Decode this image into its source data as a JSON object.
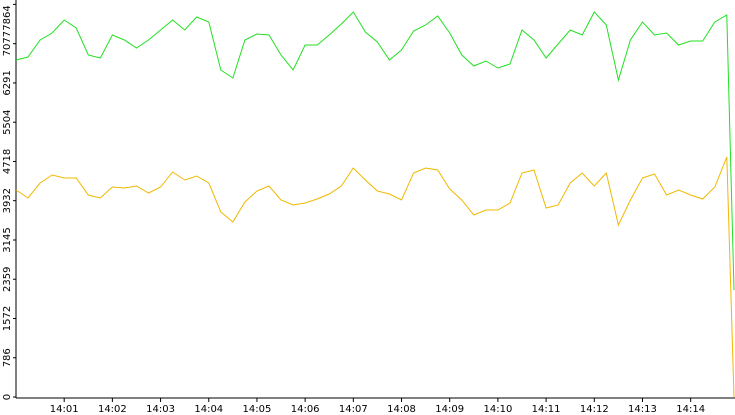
{
  "chart_data": {
    "type": "line",
    "x": [
      0,
      0.25,
      0.5,
      0.75,
      1,
      1.25,
      1.5,
      1.75,
      2,
      2.25,
      2.5,
      2.75,
      3,
      3.25,
      3.5,
      3.75,
      4,
      4.25,
      4.5,
      4.75,
      5,
      5.25,
      5.5,
      5.75,
      6,
      6.25,
      6.5,
      6.75,
      7,
      7.25,
      7.5,
      7.75,
      8,
      8.25,
      8.5,
      8.75,
      9,
      9.25,
      9.5,
      9.75,
      10,
      10.25,
      10.5,
      10.75,
      11,
      11.25,
      11.5,
      11.75,
      12,
      12.25,
      12.5,
      12.75,
      13,
      13.25,
      13.5,
      13.75,
      14,
      14.25,
      14.5,
      14.75,
      14.9
    ],
    "series": [
      {
        "color": "#22e022",
        "values": [
          6750,
          6810,
          7151,
          7291,
          7551,
          7391,
          6850,
          6790,
          7251,
          7151,
          6990,
          7151,
          7351,
          7551,
          7351,
          7611,
          7511,
          6550,
          6390,
          7151,
          7271,
          7251,
          6850,
          6550,
          7051,
          7051,
          7251,
          7471,
          7711,
          7311,
          7111,
          6750,
          6950,
          7331,
          7451,
          7631,
          7291,
          6850,
          6630,
          6730,
          6590,
          6670,
          7351,
          7151,
          6790,
          7071,
          7351,
          7251,
          7711,
          7451,
          6350,
          7151,
          7511,
          7251,
          7291,
          7051,
          7131,
          7131,
          7511,
          7651,
          2143
        ]
      },
      {
        "color": "#f0b800",
        "values": [
          4146,
          3986,
          4286,
          4447,
          4386,
          4386,
          4046,
          3986,
          4206,
          4186,
          4226,
          4086,
          4206,
          4507,
          4347,
          4427,
          4286,
          3706,
          3506,
          3906,
          4126,
          4226,
          3946,
          3846,
          3886,
          3966,
          4066,
          4226,
          4587,
          4347,
          4126,
          4066,
          3946,
          4487,
          4587,
          4547,
          4166,
          3946,
          3646,
          3746,
          3746,
          3886,
          4487,
          4547,
          3786,
          3846,
          4286,
          4487,
          4226,
          4487,
          3446,
          3946,
          4387,
          4467,
          4046,
          4146,
          4046,
          3966,
          4206,
          4807,
          0
        ]
      }
    ],
    "xlim": [
      0,
      14.92
    ],
    "xticks": [
      {
        "value": 1,
        "label": "14:01"
      },
      {
        "value": 2,
        "label": "14:02"
      },
      {
        "value": 3,
        "label": "14:03"
      },
      {
        "value": 4,
        "label": "14:04"
      },
      {
        "value": 5,
        "label": "14:05"
      },
      {
        "value": 6,
        "label": "14:06"
      },
      {
        "value": 7,
        "label": "14:07"
      },
      {
        "value": 8,
        "label": "14:08"
      },
      {
        "value": 9,
        "label": "14:09"
      },
      {
        "value": 10,
        "label": "14:10"
      },
      {
        "value": 11,
        "label": "14:11"
      },
      {
        "value": 12,
        "label": "14:12"
      },
      {
        "value": 13,
        "label": "14:13"
      },
      {
        "value": 14,
        "label": "14:14"
      }
    ],
    "ylim": [
      0,
      7952
    ],
    "yticks": [
      0,
      786,
      1572,
      2359,
      3145,
      3932,
      4718,
      5504,
      6291,
      7077,
      7864
    ],
    "grid": false
  }
}
